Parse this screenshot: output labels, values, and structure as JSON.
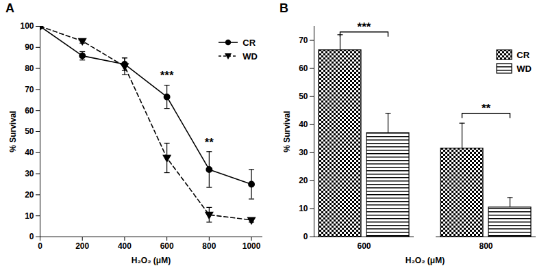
{
  "chart_data": [
    {
      "type": "line",
      "title": "A",
      "xlabel": "H₂O₂ (μM)",
      "ylabel": "% Survival",
      "x": [
        0,
        200,
        400,
        600,
        800,
        1000
      ],
      "series": [
        {
          "name": "CR",
          "color": "#000000",
          "marker": "circle",
          "line_style": "solid",
          "values": [
            100,
            86,
            82,
            66.5,
            32,
            25
          ],
          "errors": [
            0,
            2,
            3,
            5.5,
            8.5,
            7
          ]
        },
        {
          "name": "WD",
          "color": "#000000",
          "marker": "triangle-down",
          "line_style": "dashed",
          "values": [
            100,
            93,
            81,
            37.5,
            10.5,
            8
          ],
          "errors": [
            0,
            1,
            4,
            7,
            3.5,
            1
          ]
        }
      ],
      "xlim": [
        0,
        1050
      ],
      "xticks": [
        0,
        200,
        400,
        600,
        800,
        1000
      ],
      "ylim": [
        0,
        100
      ],
      "yticks": [
        0,
        10,
        20,
        30,
        40,
        50,
        60,
        70,
        80,
        90,
        100
      ],
      "legend": "upper right",
      "annotations": [
        {
          "text": "***",
          "x": 600,
          "y": 75
        },
        {
          "text": "**",
          "x": 800,
          "y": 43
        }
      ]
    },
    {
      "type": "bar",
      "title": "B",
      "xlabel": "H₂O₂ (μM)",
      "ylabel": "% Survival",
      "categories": [
        "600",
        "800"
      ],
      "series": [
        {
          "name": "CR",
          "color": "#000000",
          "values": [
            66.5,
            31.5
          ],
          "errors": [
            5.5,
            9
          ]
        },
        {
          "name": "WD",
          "color": "#000000",
          "values": [
            37,
            10.5
          ],
          "errors": [
            7,
            3.5
          ]
        }
      ],
      "ylim": [
        0,
        75
      ],
      "yticks": [
        0,
        10,
        20,
        30,
        40,
        50,
        60,
        70
      ],
      "legend": "upper right",
      "annotations": [
        {
          "text": "***",
          "category": "600",
          "y": 73
        },
        {
          "text": "**",
          "category": "800",
          "y": 44
        }
      ]
    }
  ]
}
